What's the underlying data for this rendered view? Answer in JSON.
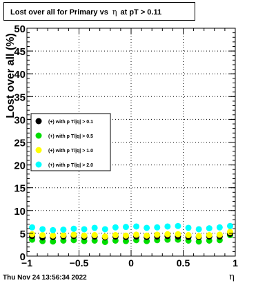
{
  "title": {
    "prefix": "Lost over all for Primary vs",
    "symbol": "η",
    "suffix": "at pT > 0.11"
  },
  "footer": "Thu Nov 24 13:56:34 2022",
  "chart_data": {
    "type": "scatter",
    "title": "Lost over all for Primary vs η at pT > 0.11",
    "xlabel": "η",
    "ylabel": "Lost over all (%)",
    "xlim": [
      -1,
      1
    ],
    "ylim": [
      0,
      50
    ],
    "grid": true,
    "legend_position": "left-middle",
    "xticks": [
      "−1",
      "−0.5",
      "0",
      "0.5",
      "1"
    ],
    "yticks": [
      "0",
      "5",
      "10",
      "15",
      "20",
      "25",
      "30",
      "35",
      "40",
      "45",
      "50"
    ],
    "x": [
      -0.95,
      -0.85,
      -0.75,
      -0.65,
      -0.55,
      -0.45,
      -0.35,
      -0.25,
      -0.15,
      -0.05,
      0.05,
      0.15,
      0.25,
      0.35,
      0.45,
      0.55,
      0.65,
      0.75,
      0.85,
      0.95
    ],
    "series": [
      {
        "name": "(+) with p T/|q| > 0.1",
        "color": "#000000",
        "values": [
          4.4,
          4.1,
          4.2,
          4.3,
          4.4,
          4.2,
          4.3,
          4.1,
          4.3,
          4.2,
          4.3,
          4.2,
          4.3,
          4.4,
          4.3,
          4.2,
          4.2,
          4.3,
          4.3,
          4.9
        ]
      },
      {
        "name": "(+) with p T/|q| > 0.5",
        "color": "#00dd00",
        "values": [
          3.6,
          3.3,
          3.2,
          3.4,
          3.5,
          3.3,
          3.4,
          3.1,
          3.4,
          3.3,
          3.5,
          3.3,
          3.5,
          3.6,
          3.6,
          3.4,
          3.2,
          3.4,
          3.5,
          4.6
        ]
      },
      {
        "name": "(+) with p T/|q| > 1.0",
        "color": "#ffff00",
        "values": [
          4.8,
          4.6,
          4.5,
          4.6,
          4.7,
          4.5,
          4.6,
          4.3,
          4.6,
          4.5,
          4.7,
          4.5,
          4.7,
          4.8,
          4.8,
          4.6,
          4.4,
          4.6,
          4.7,
          5.3
        ]
      },
      {
        "name": "(+) with p T/|q| > 2.0",
        "color": "#00ffff",
        "values": [
          6.3,
          5.9,
          5.7,
          5.8,
          6.0,
          5.9,
          6.2,
          5.9,
          6.3,
          6.4,
          6.5,
          6.2,
          6.3,
          6.5,
          6.6,
          6.2,
          5.9,
          6.1,
          6.3,
          6.6
        ]
      }
    ]
  }
}
